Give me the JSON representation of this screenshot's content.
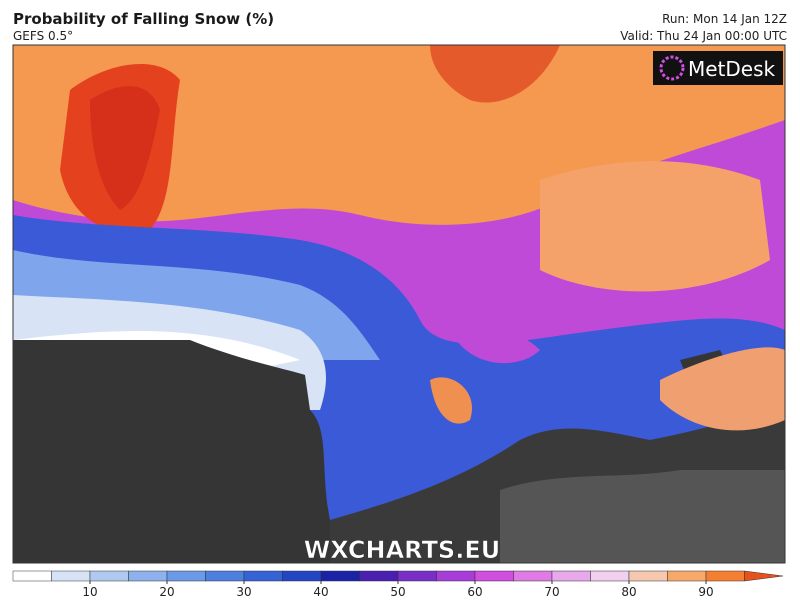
{
  "header": {
    "title": "Probability of Falling Snow (%)",
    "subtitle": "GEFS 0.5°",
    "run": "Run: Mon 14 Jan 12Z",
    "valid": "Valid: Thu 24 Jan 00:00 UTC"
  },
  "logo": "MetDesk",
  "watermark": "WXCHARTS.EU",
  "colorbar": {
    "bounds": [
      0,
      5,
      10,
      15,
      20,
      25,
      30,
      35,
      40,
      45,
      50,
      55,
      60,
      65,
      70,
      75,
      80,
      85,
      90,
      95
    ],
    "colors": [
      "#ffffff",
      "#d6e2f6",
      "#b0c9f0",
      "#8db2ee",
      "#6a9ae8",
      "#4c7fe0",
      "#3563d6",
      "#2346c4",
      "#1a23a8",
      "#4a1eb0",
      "#7a2ec8",
      "#a83cd8",
      "#d04ee0",
      "#e07ae6",
      "#e8a8ec",
      "#f0d0ee",
      "#f6c8b0",
      "#f8a868",
      "#f57e30",
      "#e8501c"
    ],
    "ticks": [
      10,
      20,
      30,
      40,
      50,
      60,
      70,
      80,
      90
    ]
  }
}
